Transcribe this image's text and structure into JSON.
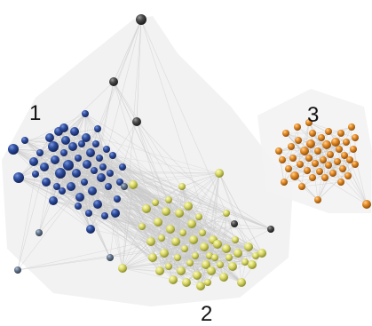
{
  "labels": {
    "cluster_1": "1",
    "cluster_2": "2",
    "cluster_3": "3"
  },
  "colors": {
    "background": "#ffffff",
    "edge": "#c9c9c9",
    "halo": "#f1f1f1",
    "cluster_1": "#2f4fa0",
    "cluster_2": "#dcdc6a",
    "cluster_3": "#e48a24",
    "bridge_nodes": "#4a4a4a",
    "periphery_nodes": "#66778f"
  }
}
